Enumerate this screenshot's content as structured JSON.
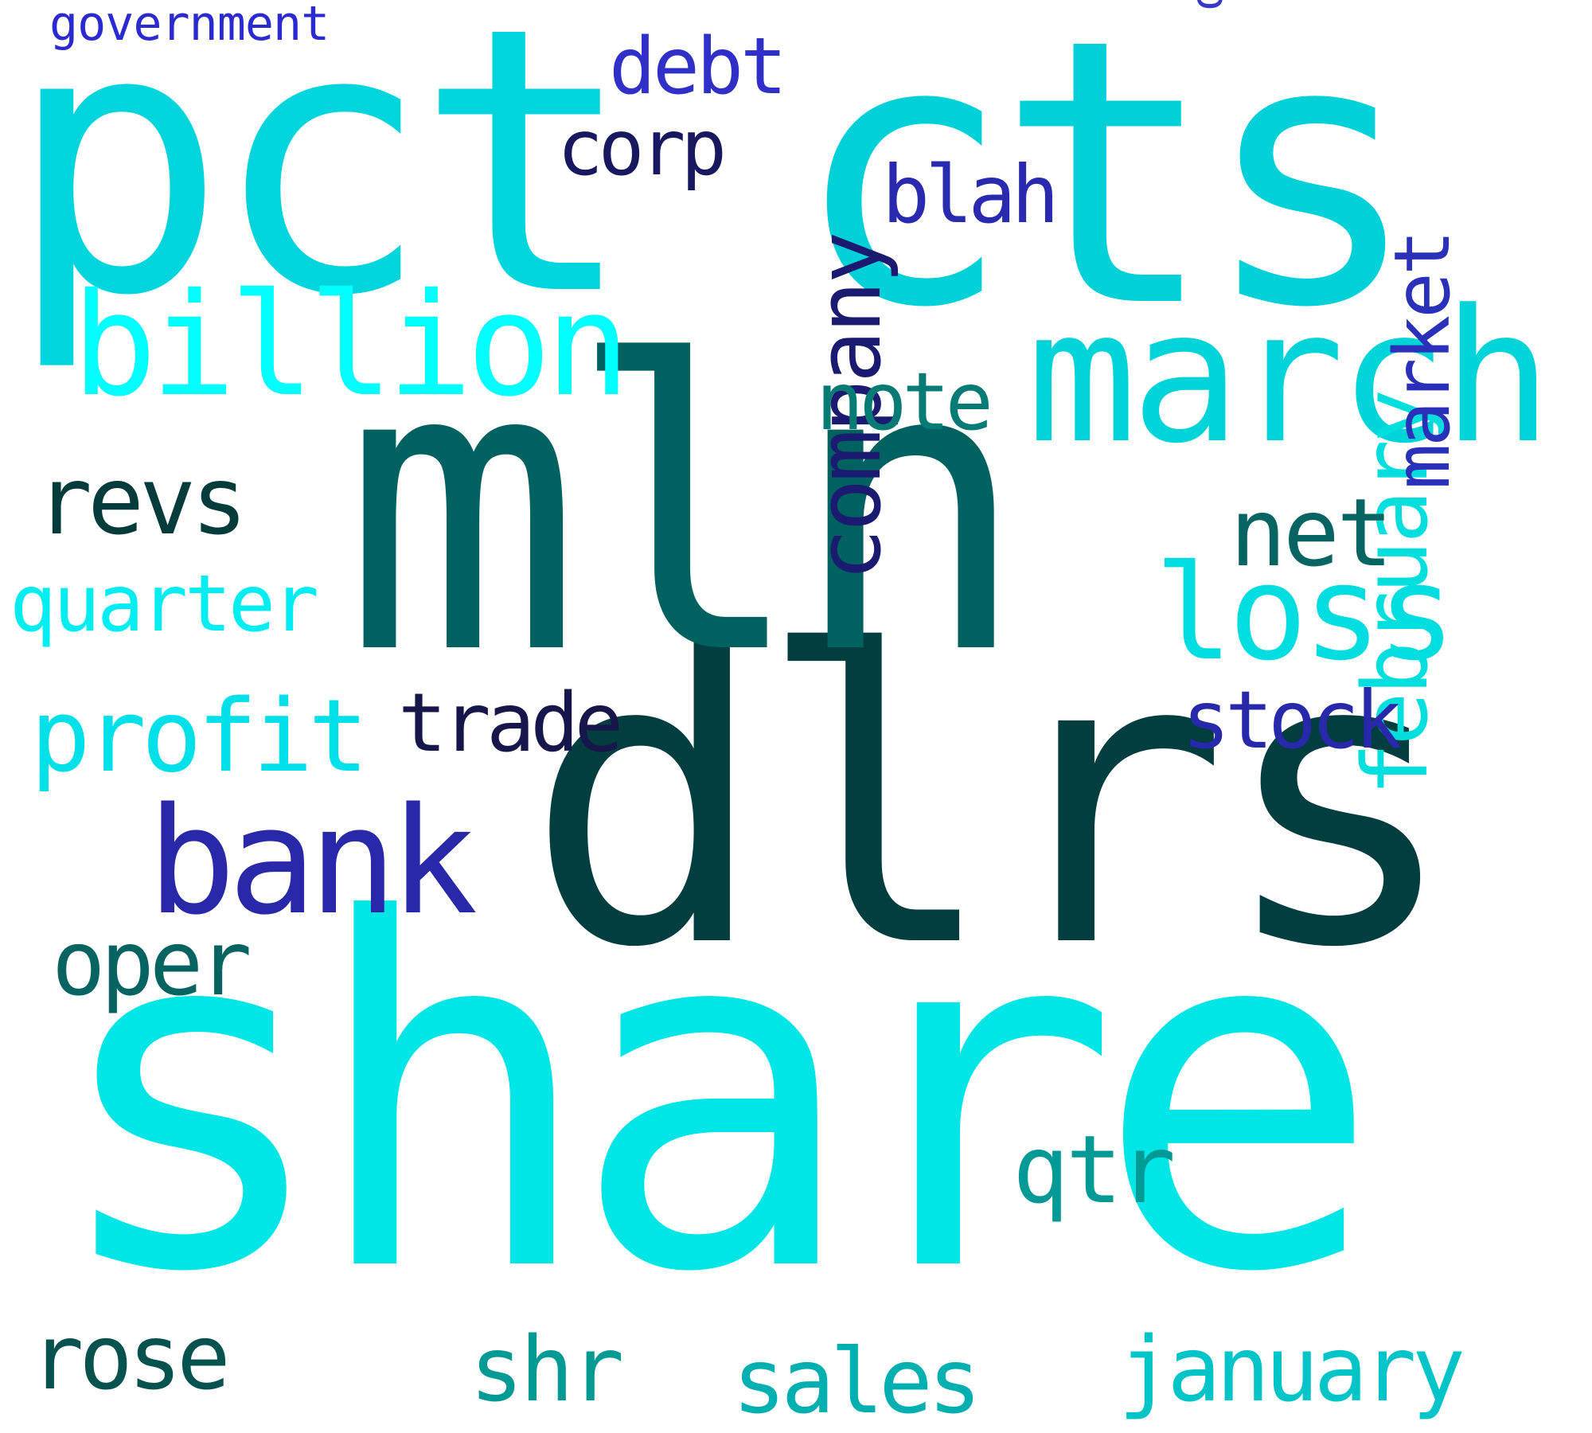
{
  "words": {
    "share": {
      "text": "share",
      "color": "#00e5e5"
    },
    "dlrs": {
      "text": "dlrs",
      "color": "#023e40"
    },
    "mln": {
      "text": "mln",
      "color": "#006260"
    },
    "cts": {
      "text": "cts",
      "color": "#00d0d8"
    },
    "pct": {
      "text": "pct",
      "color": "#00d4dc"
    },
    "march": {
      "text": "march",
      "color": "#00d4d8"
    },
    "billion": {
      "text": "billion",
      "color": "#00ffff"
    },
    "loss": {
      "text": "loss",
      "color": "#00dde0"
    },
    "bank": {
      "text": "bank",
      "color": "#2828a8"
    },
    "company": {
      "text": "company",
      "color": "#1a1a70"
    },
    "february": {
      "text": "february",
      "color": "#00dede"
    },
    "profit": {
      "text": "profit",
      "color": "#00e0e8"
    },
    "revs": {
      "text": "revs",
      "color": "#033c3a"
    },
    "quarter": {
      "text": "quarter",
      "color": "#00eef2"
    },
    "oper": {
      "text": "oper",
      "color": "#056462"
    },
    "net": {
      "text": "net",
      "color": "#066462"
    },
    "market": {
      "text": "market",
      "color": "#2a30b8"
    },
    "stock": {
      "text": "stock",
      "color": "#2828aa"
    },
    "trade": {
      "text": "trade",
      "color": "#16164a"
    },
    "qtr": {
      "text": "qtr",
      "color": "#009a96"
    },
    "note": {
      "text": "note",
      "color": "#067a74"
    },
    "blah": {
      "text": "blah",
      "color": "#2a2ab0"
    },
    "corp": {
      "text": "corp",
      "color": "#181860"
    },
    "debt": {
      "text": "debt",
      "color": "#3030c8"
    },
    "government": {
      "text": "government",
      "color": "#2a2ad0"
    },
    "oil": {
      "text": "oil",
      "color": "#3838c8"
    },
    "rose": {
      "text": "rose",
      "color": "#06524e"
    },
    "shr": {
      "text": "shr",
      "color": "#009a94"
    },
    "sales": {
      "text": "sales",
      "color": "#00b0b0"
    },
    "january": {
      "text": "january",
      "color": "#00c4c8"
    }
  }
}
